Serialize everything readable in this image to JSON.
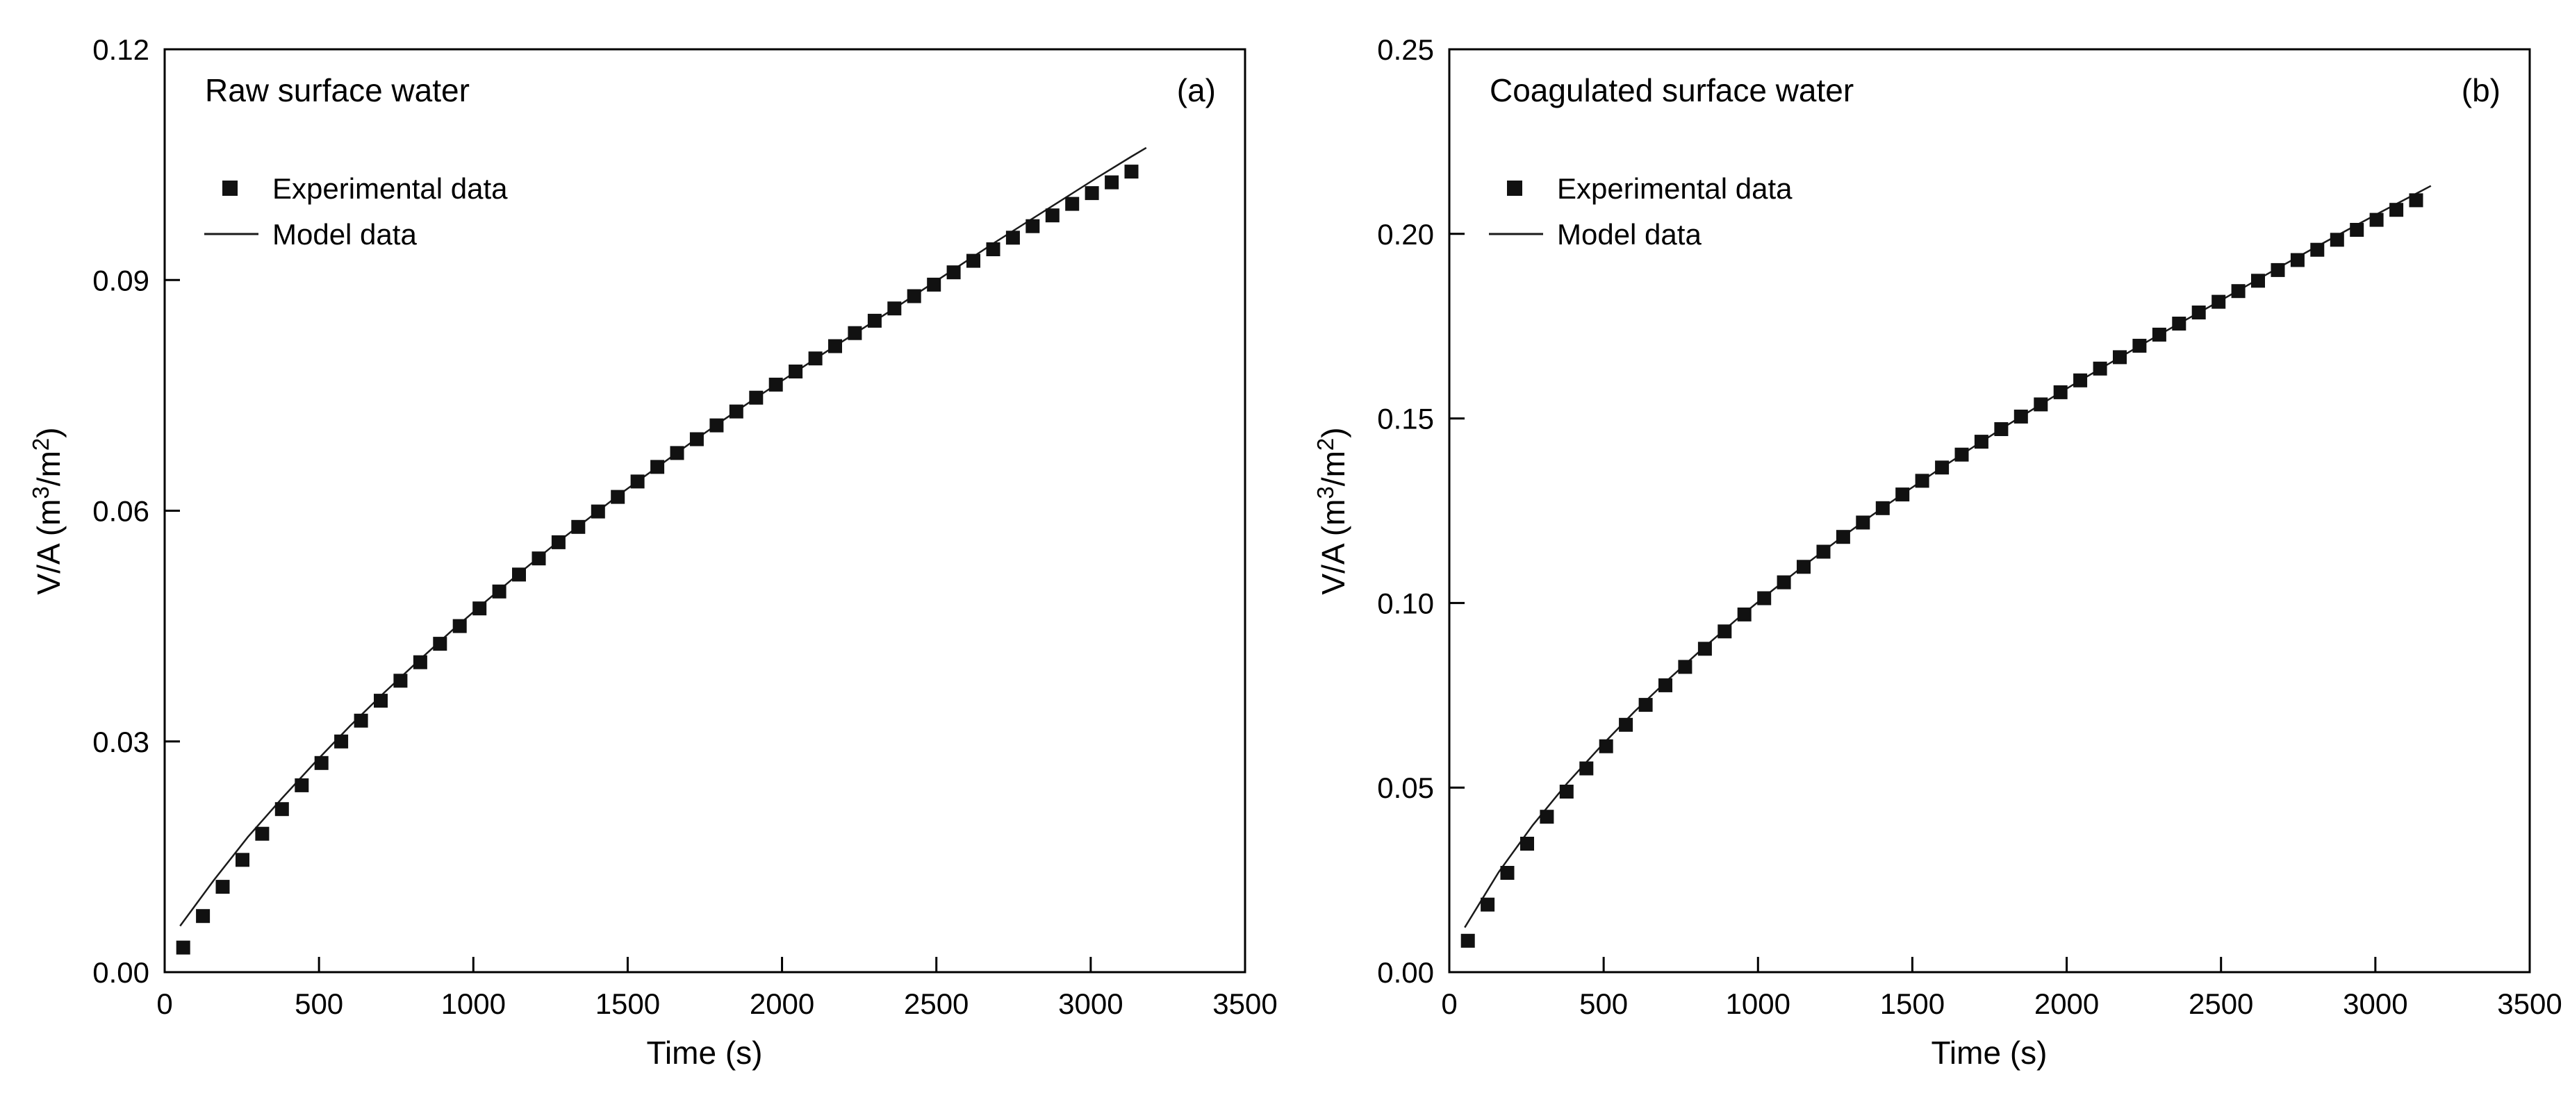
{
  "figure": {
    "background": "#ffffff"
  },
  "chart_data": [
    {
      "type": "scatter",
      "title": "Raw surface water",
      "panel_label": "(a)",
      "xlabel": "Time (s)",
      "ylabel": "V/A (m3/m2)",
      "ylabel_parts": {
        "pre": "V/A (m",
        "sup1": "3",
        "mid": "/m",
        "sup2": "2",
        "post": ")"
      },
      "xlim": [
        0,
        3500
      ],
      "ylim": [
        0,
        0.12
      ],
      "xticks": [
        0,
        500,
        1000,
        1500,
        2000,
        2500,
        3000,
        3500
      ],
      "xtick_labels": [
        "0",
        "500",
        "1000",
        "1500",
        "2000",
        "2500",
        "3000",
        "3500"
      ],
      "yticks": [
        0,
        0.03,
        0.06,
        0.09,
        0.12
      ],
      "ytick_labels": [
        "0.00",
        "0.03",
        "0.06",
        "0.09",
        "0.12"
      ],
      "grid": false,
      "legend_position": "top-left",
      "series": {
        "experimental": {
          "label": "Experimental data",
          "marker": "square",
          "color": "#111111",
          "points": [
            [
              60,
              0.0032
            ],
            [
              124,
              0.0073
            ],
            [
              188,
              0.0111
            ],
            [
              252,
              0.0146
            ],
            [
              316,
              0.018
            ],
            [
              380,
              0.0212
            ],
            [
              444,
              0.0243
            ],
            [
              508,
              0.0272
            ],
            [
              572,
              0.03
            ],
            [
              636,
              0.0327
            ],
            [
              700,
              0.0353
            ],
            [
              764,
              0.0379
            ],
            [
              828,
              0.0403
            ],
            [
              892,
              0.0427
            ],
            [
              956,
              0.045
            ],
            [
              1020,
              0.0473
            ],
            [
              1084,
              0.0495
            ],
            [
              1148,
              0.0517
            ],
            [
              1212,
              0.0538
            ],
            [
              1276,
              0.0559
            ],
            [
              1340,
              0.0579
            ],
            [
              1404,
              0.0599
            ],
            [
              1468,
              0.0618
            ],
            [
              1532,
              0.0638
            ],
            [
              1596,
              0.0657
            ],
            [
              1660,
              0.0675
            ],
            [
              1724,
              0.0693
            ],
            [
              1788,
              0.0711
            ],
            [
              1852,
              0.0729
            ],
            [
              1916,
              0.0747
            ],
            [
              1980,
              0.0764
            ],
            [
              2044,
              0.0781
            ],
            [
              2108,
              0.0798
            ],
            [
              2172,
              0.0814
            ],
            [
              2236,
              0.0831
            ],
            [
              2300,
              0.0847
            ],
            [
              2364,
              0.0863
            ],
            [
              2428,
              0.0879
            ],
            [
              2492,
              0.0894
            ],
            [
              2556,
              0.091
            ],
            [
              2620,
              0.0925
            ],
            [
              2684,
              0.094
            ],
            [
              2748,
              0.0955
            ],
            [
              2812,
              0.097
            ],
            [
              2876,
              0.0984
            ],
            [
              2940,
              0.0999
            ],
            [
              3004,
              0.1013
            ],
            [
              3068,
              0.1027
            ],
            [
              3132,
              0.1041
            ]
          ]
        },
        "model": {
          "label": "Model data",
          "type": "line",
          "color": "#1a1a1a",
          "points": [
            [
              50,
              0.006
            ],
            [
              160,
              0.012
            ],
            [
              270,
              0.0176
            ],
            [
              380,
              0.0226
            ],
            [
              490,
              0.0274
            ],
            [
              600,
              0.032
            ],
            [
              710,
              0.0363
            ],
            [
              820,
              0.0404
            ],
            [
              930,
              0.0444
            ],
            [
              1040,
              0.0482
            ],
            [
              1150,
              0.0519
            ],
            [
              1260,
              0.0555
            ],
            [
              1370,
              0.0589
            ],
            [
              1480,
              0.0623
            ],
            [
              1590,
              0.0655
            ],
            [
              1700,
              0.0687
            ],
            [
              1810,
              0.0718
            ],
            [
              1920,
              0.0748
            ],
            [
              2030,
              0.0777
            ],
            [
              2140,
              0.0806
            ],
            [
              2250,
              0.0834
            ],
            [
              2360,
              0.0862
            ],
            [
              2470,
              0.0891
            ],
            [
              2580,
              0.092
            ],
            [
              2690,
              0.0949
            ],
            [
              2800,
              0.0977
            ],
            [
              2910,
              0.1005
            ],
            [
              3020,
              0.1033
            ],
            [
              3130,
              0.106
            ],
            [
              3180,
              0.1072
            ]
          ]
        }
      }
    },
    {
      "type": "scatter",
      "title": "Coagulated surface water",
      "panel_label": "(b)",
      "xlabel": "Time (s)",
      "ylabel": "V/A (m3/m2)",
      "ylabel_parts": {
        "pre": "V/A (m",
        "sup1": "3",
        "mid": "/m",
        "sup2": "2",
        "post": ")"
      },
      "xlim": [
        0,
        3500
      ],
      "ylim": [
        0,
        0.25
      ],
      "xticks": [
        0,
        500,
        1000,
        1500,
        2000,
        2500,
        3000,
        3500
      ],
      "xtick_labels": [
        "0",
        "500",
        "1000",
        "1500",
        "2000",
        "2500",
        "3000",
        "3500"
      ],
      "yticks": [
        0,
        0.05,
        0.1,
        0.15,
        0.2,
        0.25
      ],
      "ytick_labels": [
        "0.00",
        "0.05",
        "0.10",
        "0.15",
        "0.20",
        "0.25"
      ],
      "grid": false,
      "legend_position": "top-left",
      "series": {
        "experimental": {
          "label": "Experimental data",
          "marker": "square",
          "color": "#111111",
          "points": [
            [
              60,
              0.0085
            ],
            [
              124,
              0.0183
            ],
            [
              188,
              0.0269
            ],
            [
              252,
              0.0348
            ],
            [
              316,
              0.0421
            ],
            [
              380,
              0.0489
            ],
            [
              444,
              0.0552
            ],
            [
              508,
              0.0612
            ],
            [
              572,
              0.067
            ],
            [
              636,
              0.0724
            ],
            [
              700,
              0.0777
            ],
            [
              764,
              0.0827
            ],
            [
              828,
              0.0876
            ],
            [
              892,
              0.0923
            ],
            [
              956,
              0.0969
            ],
            [
              1020,
              0.1013
            ],
            [
              1084,
              0.1056
            ],
            [
              1148,
              0.1098
            ],
            [
              1212,
              0.1139
            ],
            [
              1276,
              0.1179
            ],
            [
              1340,
              0.1218
            ],
            [
              1404,
              0.1257
            ],
            [
              1468,
              0.1294
            ],
            [
              1532,
              0.1331
            ],
            [
              1596,
              0.1367
            ],
            [
              1660,
              0.1402
            ],
            [
              1724,
              0.1437
            ],
            [
              1788,
              0.1471
            ],
            [
              1852,
              0.1505
            ],
            [
              1916,
              0.1538
            ],
            [
              1980,
              0.1571
            ],
            [
              2044,
              0.1603
            ],
            [
              2108,
              0.1635
            ],
            [
              2172,
              0.1666
            ],
            [
              2236,
              0.1697
            ],
            [
              2300,
              0.1727
            ],
            [
              2364,
              0.1757
            ],
            [
              2428,
              0.1787
            ],
            [
              2492,
              0.1816
            ],
            [
              2556,
              0.1845
            ],
            [
              2620,
              0.1873
            ],
            [
              2684,
              0.1902
            ],
            [
              2748,
              0.1929
            ],
            [
              2812,
              0.1957
            ],
            [
              2876,
              0.1984
            ],
            [
              2940,
              0.2011
            ],
            [
              3004,
              0.2038
            ],
            [
              3068,
              0.2065
            ],
            [
              3132,
              0.2091
            ]
          ]
        },
        "model": {
          "label": "Model data",
          "type": "line",
          "color": "#1a1a1a",
          "points": [
            [
              50,
              0.0121
            ],
            [
              160,
              0.0271
            ],
            [
              270,
              0.0398
            ],
            [
              380,
              0.051
            ],
            [
              490,
              0.0611
            ],
            [
              600,
              0.0706
            ],
            [
              710,
              0.0793
            ],
            [
              820,
              0.0876
            ],
            [
              930,
              0.0955
            ],
            [
              1040,
              0.103
            ],
            [
              1150,
              0.1102
            ],
            [
              1260,
              0.1171
            ],
            [
              1370,
              0.1238
            ],
            [
              1480,
              0.1302
            ],
            [
              1590,
              0.1364
            ],
            [
              1700,
              0.1424
            ],
            [
              1810,
              0.1483
            ],
            [
              1920,
              0.154
            ],
            [
              2030,
              0.1596
            ],
            [
              2140,
              0.165
            ],
            [
              2250,
              0.1703
            ],
            [
              2360,
              0.1755
            ],
            [
              2470,
              0.1806
            ],
            [
              2580,
              0.1858
            ],
            [
              2690,
              0.191
            ],
            [
              2800,
              0.1961
            ],
            [
              2910,
              0.2011
            ],
            [
              3020,
              0.206
            ],
            [
              3130,
              0.2108
            ],
            [
              3180,
              0.213
            ]
          ]
        }
      }
    }
  ]
}
